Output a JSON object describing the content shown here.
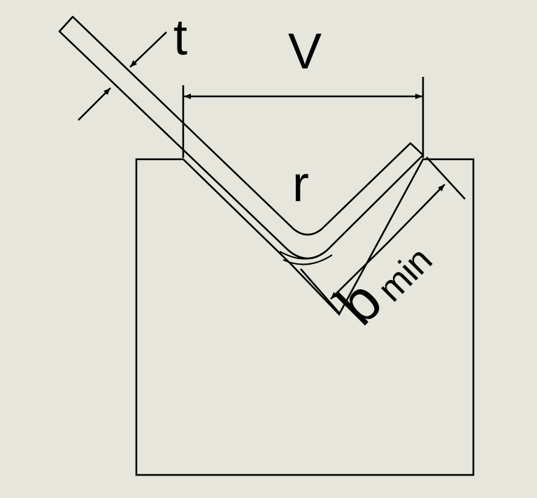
{
  "colors": {
    "background": "#e6e6dc",
    "stroke": "#000000"
  },
  "labels": {
    "thickness": "t",
    "die_opening": "V",
    "radius": "r",
    "flange_main": "b",
    "flange_sub": "min"
  }
}
